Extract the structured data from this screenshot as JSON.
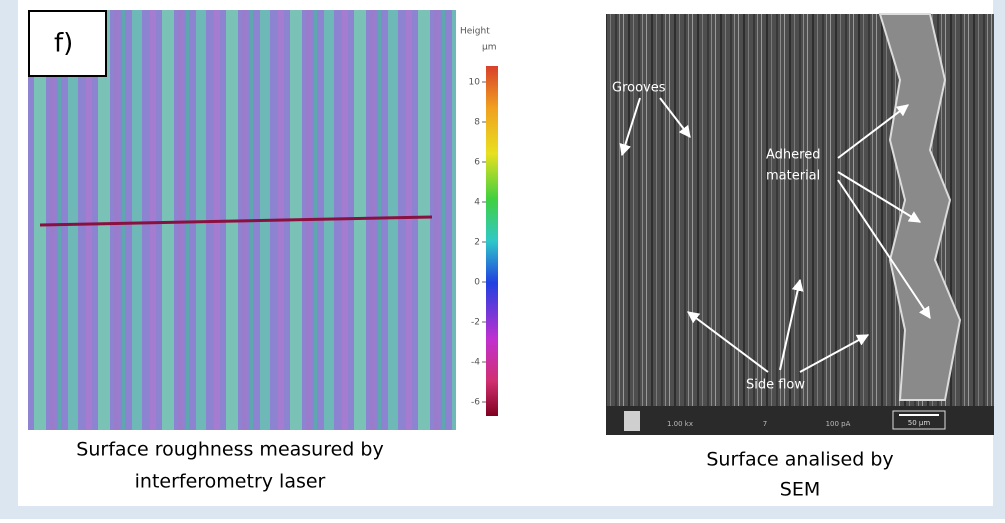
{
  "panel_label": "f)",
  "left": {
    "caption_line1": "Surface roughness measured by",
    "caption_line2": "interferometry laser"
  },
  "colorbar": {
    "label": "Height",
    "unit": "µm",
    "lim": [
      -6.7,
      10.8
    ],
    "ticks": [
      10,
      8,
      6,
      4,
      2,
      0,
      -2,
      -4,
      -6
    ]
  },
  "right": {
    "annotations": {
      "grooves": "Grooves",
      "adhered_line1": "Adhered",
      "adhered_line2": "material",
      "side_flow": "Side flow"
    },
    "info_bar": [
      "1.00 kx",
      "7",
      "100 pA"
    ],
    "scale_bar": "50 µm",
    "caption_line1": "Surface analised by",
    "caption_line2": "SEM"
  }
}
